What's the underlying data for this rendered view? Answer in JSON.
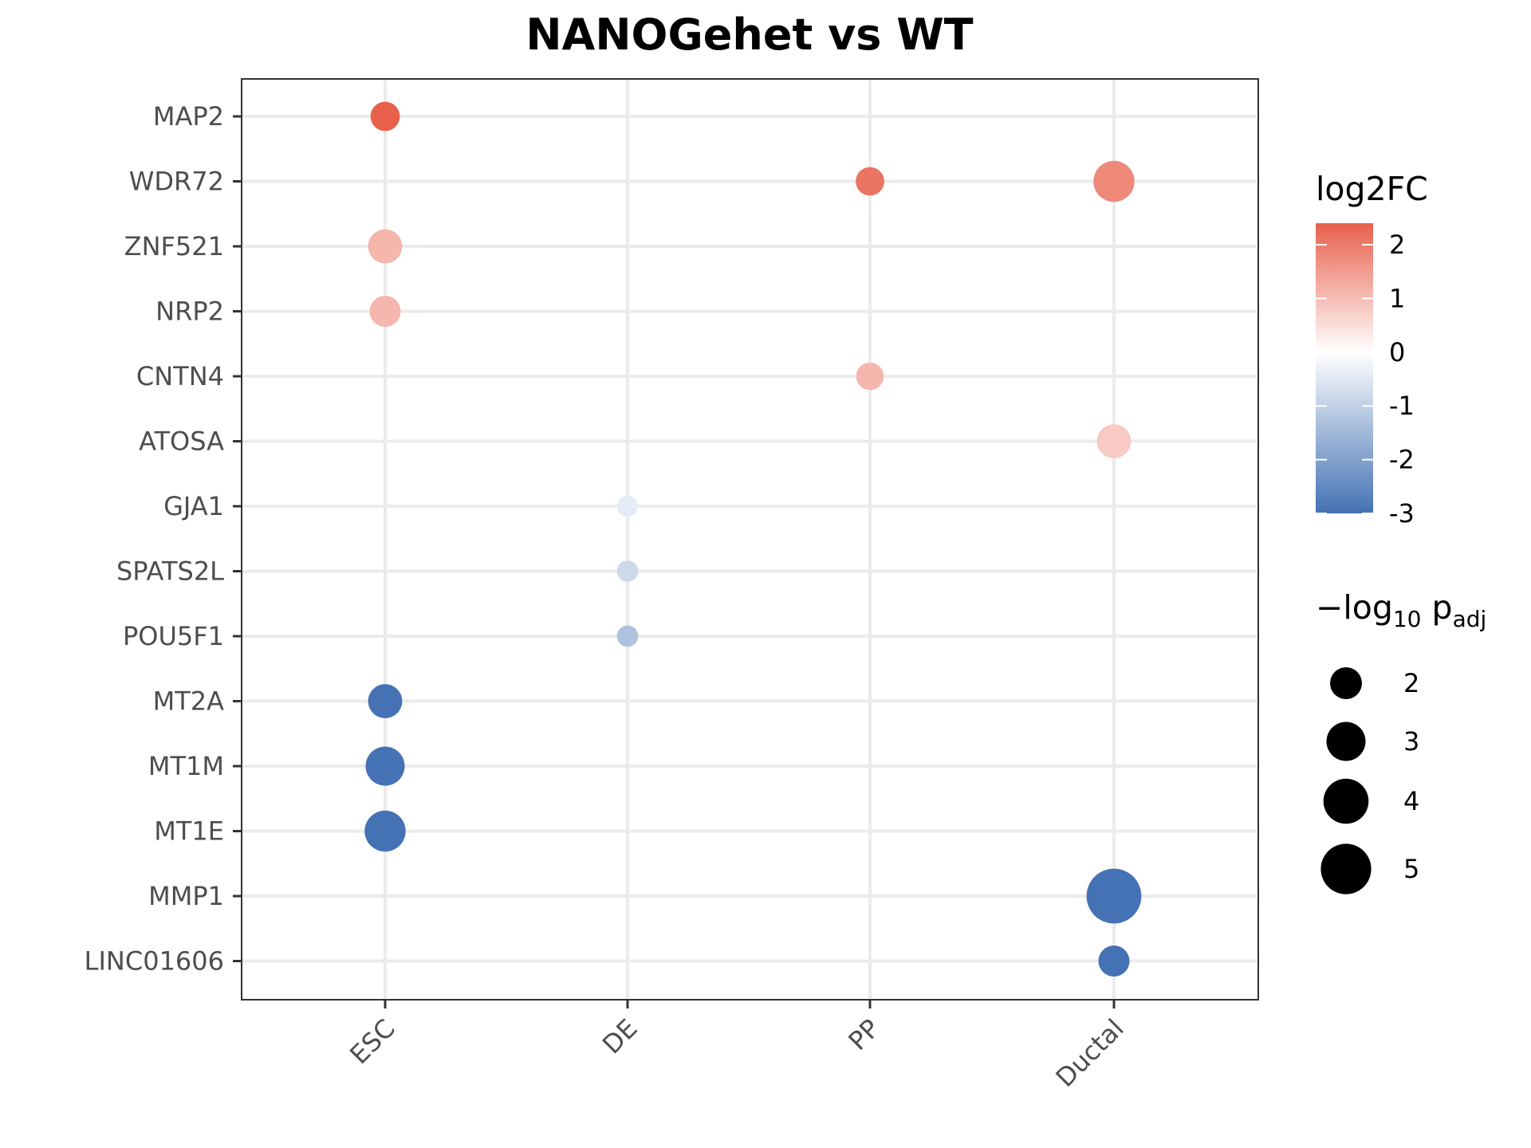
{
  "chart_data": {
    "type": "scatter",
    "title": "NANOGehet vs WT",
    "xlabel": "",
    "ylabel": "",
    "x_categories": [
      "ESC",
      "DE",
      "PP",
      "Ductal"
    ],
    "y_categories": [
      "MAP2",
      "WDR72",
      "ZNF521",
      "NRP2",
      "CNTN4",
      "ATOSA",
      "GJA1",
      "SPATS2L",
      "POU5F1",
      "MT2A",
      "MT1M",
      "MT1E",
      "MMP1",
      "LINC01606"
    ],
    "points": [
      {
        "x": "ESC",
        "y": "MAP2",
        "log2FC": 2.4,
        "neglog10padj": 1.7
      },
      {
        "x": "PP",
        "y": "WDR72",
        "log2FC": 2.1,
        "neglog10padj": 1.6
      },
      {
        "x": "Ductal",
        "y": "WDR72",
        "log2FC": 1.8,
        "neglog10padj": 3.3
      },
      {
        "x": "ESC",
        "y": "ZNF521",
        "log2FC": 1.1,
        "neglog10padj": 2.3
      },
      {
        "x": "ESC",
        "y": "NRP2",
        "log2FC": 1.1,
        "neglog10padj": 1.9
      },
      {
        "x": "PP",
        "y": "CNTN4",
        "log2FC": 1.1,
        "neglog10padj": 1.5
      },
      {
        "x": "Ductal",
        "y": "ATOSA",
        "log2FC": 0.8,
        "neglog10padj": 2.3
      },
      {
        "x": "DE",
        "y": "GJA1",
        "log2FC": -0.4,
        "neglog10padj": 0.9
      },
      {
        "x": "DE",
        "y": "SPATS2L",
        "log2FC": -0.8,
        "neglog10padj": 0.9
      },
      {
        "x": "DE",
        "y": "POU5F1",
        "log2FC": -1.3,
        "neglog10padj": 0.9
      },
      {
        "x": "ESC",
        "y": "MT2A",
        "log2FC": -3.0,
        "neglog10padj": 2.3
      },
      {
        "x": "ESC",
        "y": "MT1M",
        "log2FC": -3.0,
        "neglog10padj": 3.0
      },
      {
        "x": "ESC",
        "y": "MT1E",
        "log2FC": -3.0,
        "neglog10padj": 3.3
      },
      {
        "x": "Ductal",
        "y": "MMP1",
        "log2FC": -3.0,
        "neglog10padj": 5.9
      },
      {
        "x": "Ductal",
        "y": "LINC01606",
        "log2FC": -3.0,
        "neglog10padj": 1.9
      }
    ],
    "color_legend": {
      "title": "log2FC",
      "range": [
        -3,
        2.4
      ],
      "ticks": [
        "2",
        "1",
        "0",
        "-1",
        "-2",
        "-3"
      ],
      "low_color": "#4472b4",
      "mid_color": "#ffffff",
      "high_color": "#e8604c"
    },
    "size_legend": {
      "title_main": "−log",
      "title_sub": "10",
      "title_p": " p",
      "title_adj": "adj",
      "values": [
        2,
        3,
        4,
        5
      ],
      "labels": [
        "2",
        "3",
        "4",
        "5"
      ]
    },
    "grid": true,
    "legend_position": "right"
  }
}
